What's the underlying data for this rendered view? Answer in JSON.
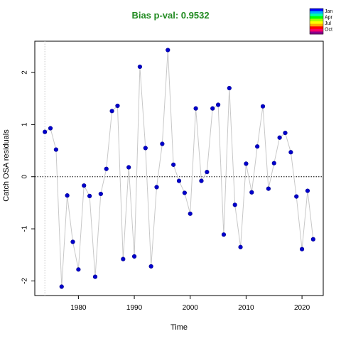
{
  "chart_data": {
    "type": "scatter",
    "title": "Bias p-val: 0.9532",
    "title_color": "#228B22",
    "xlabel": "Time",
    "ylabel": "Catch OSA residuals",
    "xlim": [
      1972.2,
      2023.8
    ],
    "ylim": [
      -2.28,
      2.6
    ],
    "x_ticks": [
      1980,
      1990,
      2000,
      2010,
      2020
    ],
    "y_ticks": [
      -2,
      -1,
      0,
      1,
      2
    ],
    "reference_line_y": 0,
    "start_line_x": 1974,
    "point_color": "#0000CD",
    "line_color": "#C8C8C8",
    "x": [
      1974,
      1975,
      1976,
      1977,
      1978,
      1979,
      1980,
      1981,
      1982,
      1983,
      1984,
      1985,
      1986,
      1987,
      1988,
      1989,
      1990,
      1991,
      1992,
      1993,
      1994,
      1995,
      1996,
      1997,
      1998,
      1999,
      2000,
      2001,
      2002,
      2003,
      2004,
      2005,
      2006,
      2007,
      2008,
      2009,
      2010,
      2011,
      2012,
      2013,
      2014,
      2015,
      2016,
      2017,
      2018,
      2019,
      2020,
      2021,
      2022
    ],
    "y": [
      0.86,
      0.93,
      0.52,
      -2.11,
      -0.36,
      -1.25,
      -1.78,
      -0.17,
      -0.37,
      -1.92,
      -0.33,
      0.15,
      1.26,
      1.36,
      -1.58,
      0.18,
      -1.53,
      2.11,
      0.55,
      -1.72,
      -0.2,
      0.63,
      2.43,
      0.23,
      -0.08,
      -0.31,
      -0.71,
      1.31,
      -0.08,
      0.09,
      1.31,
      1.38,
      -1.11,
      1.7,
      -0.54,
      -1.35,
      0.25,
      -0.3,
      0.58,
      1.35,
      -0.23,
      0.26,
      0.75,
      0.84,
      0.47,
      -0.38,
      -1.39,
      -0.27,
      -1.2
    ],
    "legend": {
      "position": "top-right",
      "labels": [
        "Jan",
        "Apr",
        "Jul",
        "Oct"
      ],
      "gradient_colors": [
        "#0000FF",
        "#00AAFF",
        "#00FFAA",
        "#00FF00",
        "#AAFF00",
        "#FFFF00",
        "#FFAA00",
        "#FF0000",
        "#FF0066",
        "#8B008B"
      ]
    }
  }
}
